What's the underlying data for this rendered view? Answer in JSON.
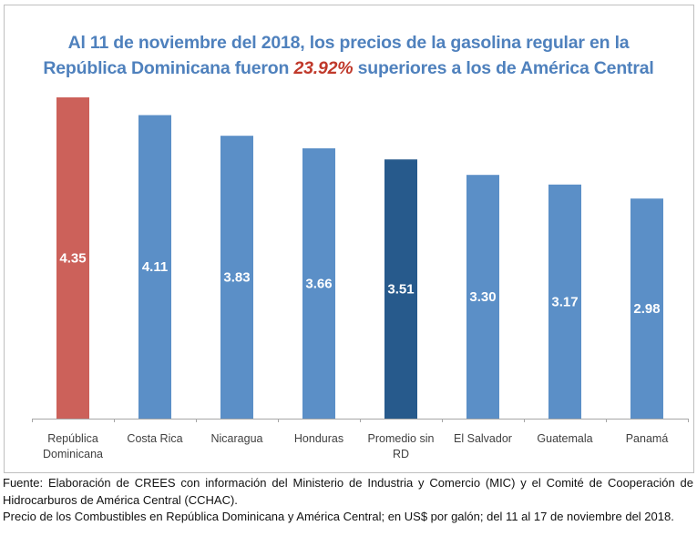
{
  "title": {
    "line1": "Al 11 de noviembre del 2018, los precios de la gasolina regular en la",
    "line2_pre": "República Dominicana fueron ",
    "line2_highlight": "23.92%",
    "line2_post": " superiores a los de América Central"
  },
  "colors": {
    "title": "#4f81bd",
    "highlight": "#c0392b",
    "bar_default": "#5b8fc7",
    "bar_rd": "#cc615a",
    "bar_average": "#275a8c",
    "axis": "#a6a6a6"
  },
  "chart_data": {
    "type": "bar",
    "title": "Al 11 de noviembre del 2018, los precios de la gasolina regular en la República Dominicana fueron 23.92% superiores a los de América Central",
    "xlabel": "",
    "ylabel": "",
    "ylim": [
      0,
      4.35
    ],
    "grid": false,
    "legend": "none",
    "categories": [
      [
        "República",
        "Dominicana"
      ],
      [
        "Costa Rica"
      ],
      [
        "Nicaragua"
      ],
      [
        "Honduras"
      ],
      [
        "Promedio sin",
        "RD"
      ],
      [
        "El Salvador"
      ],
      [
        "Guatemala"
      ],
      [
        "Panamá"
      ]
    ],
    "values": [
      4.35,
      4.11,
      3.83,
      3.66,
      3.51,
      3.3,
      3.17,
      2.98
    ],
    "value_labels": [
      "4.35",
      "4.11",
      "3.83",
      "3.66",
      "3.51",
      "3.30",
      "3.17",
      "2.98"
    ],
    "bar_roles": [
      "rd",
      "default",
      "default",
      "default",
      "average",
      "default",
      "default",
      "default"
    ]
  },
  "notes": {
    "source": "Fuente: Elaboración de CREES con información del Ministerio de Industria y Comercio (MIC) y el Comité de Cooperación de Hidrocarburos de América Central (CCHAC).",
    "description": "Precio de los Combustibles en República Dominicana y América Central; en US$ por galón; del  11 al 17 de noviembre del 2018."
  }
}
